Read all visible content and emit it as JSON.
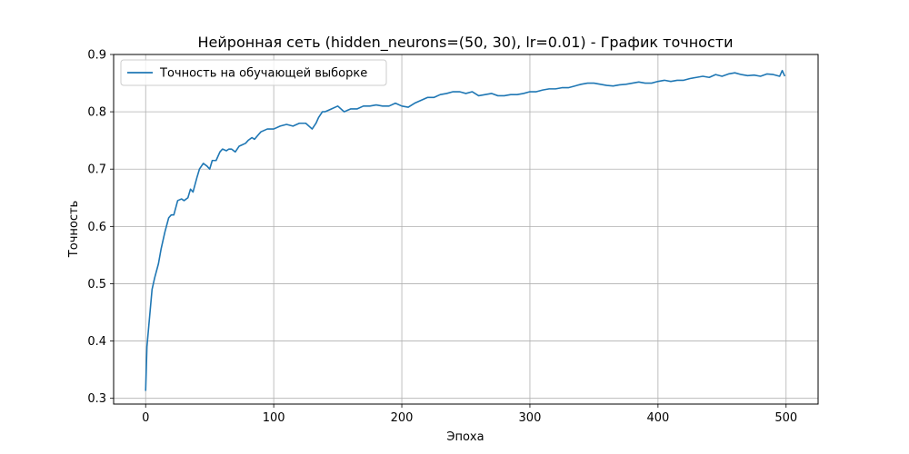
{
  "chart_data": {
    "type": "line",
    "title": "Нейронная сеть (hidden_neurons=(50, 30), lr=0.01) - График точности",
    "xlabel": "Эпоха",
    "ylabel": "Точность",
    "xlim": [
      -25,
      525
    ],
    "ylim": [
      0.29,
      0.9
    ],
    "xticks": [
      0,
      100,
      200,
      300,
      400,
      500
    ],
    "yticks": [
      0.3,
      0.4,
      0.5,
      0.6,
      0.7,
      0.8,
      0.9
    ],
    "grid": true,
    "legend_position": "top-left",
    "series": [
      {
        "name": "Точность на обучающей выборке",
        "color": "#1f77b4",
        "x": [
          0,
          1,
          3,
          5,
          7,
          10,
          12,
          15,
          18,
          20,
          22,
          25,
          28,
          30,
          33,
          35,
          37,
          40,
          42,
          45,
          48,
          50,
          52,
          55,
          58,
          60,
          63,
          65,
          67,
          70,
          73,
          75,
          78,
          80,
          83,
          85,
          88,
          90,
          93,
          95,
          100,
          105,
          110,
          115,
          120,
          125,
          130,
          133,
          135,
          138,
          140,
          145,
          150,
          155,
          160,
          165,
          170,
          175,
          180,
          185,
          190,
          195,
          200,
          205,
          210,
          215,
          220,
          225,
          230,
          235,
          240,
          245,
          250,
          255,
          260,
          265,
          270,
          275,
          280,
          285,
          290,
          295,
          300,
          305,
          310,
          315,
          320,
          325,
          330,
          335,
          340,
          345,
          350,
          355,
          360,
          365,
          370,
          375,
          380,
          385,
          390,
          395,
          400,
          405,
          410,
          415,
          420,
          425,
          430,
          435,
          440,
          445,
          450,
          455,
          460,
          465,
          470,
          475,
          480,
          485,
          490,
          495,
          497,
          499
        ],
        "values": [
          0.313,
          0.39,
          0.44,
          0.49,
          0.51,
          0.535,
          0.56,
          0.59,
          0.615,
          0.62,
          0.62,
          0.645,
          0.648,
          0.645,
          0.65,
          0.665,
          0.66,
          0.685,
          0.7,
          0.71,
          0.705,
          0.7,
          0.715,
          0.715,
          0.73,
          0.735,
          0.732,
          0.735,
          0.735,
          0.73,
          0.74,
          0.742,
          0.745,
          0.75,
          0.755,
          0.752,
          0.76,
          0.765,
          0.768,
          0.77,
          0.77,
          0.775,
          0.778,
          0.775,
          0.78,
          0.78,
          0.77,
          0.78,
          0.79,
          0.8,
          0.8,
          0.805,
          0.81,
          0.8,
          0.805,
          0.805,
          0.81,
          0.81,
          0.812,
          0.81,
          0.81,
          0.815,
          0.81,
          0.808,
          0.815,
          0.82,
          0.825,
          0.825,
          0.83,
          0.832,
          0.835,
          0.835,
          0.832,
          0.835,
          0.828,
          0.83,
          0.832,
          0.828,
          0.828,
          0.83,
          0.83,
          0.832,
          0.835,
          0.835,
          0.838,
          0.84,
          0.84,
          0.842,
          0.842,
          0.845,
          0.848,
          0.85,
          0.85,
          0.848,
          0.846,
          0.845,
          0.847,
          0.848,
          0.85,
          0.852,
          0.85,
          0.85,
          0.853,
          0.855,
          0.853,
          0.855,
          0.855,
          0.858,
          0.86,
          0.862,
          0.86,
          0.865,
          0.862,
          0.866,
          0.868,
          0.865,
          0.863,
          0.864,
          0.862,
          0.866,
          0.865,
          0.862,
          0.872,
          0.862
        ]
      }
    ]
  }
}
